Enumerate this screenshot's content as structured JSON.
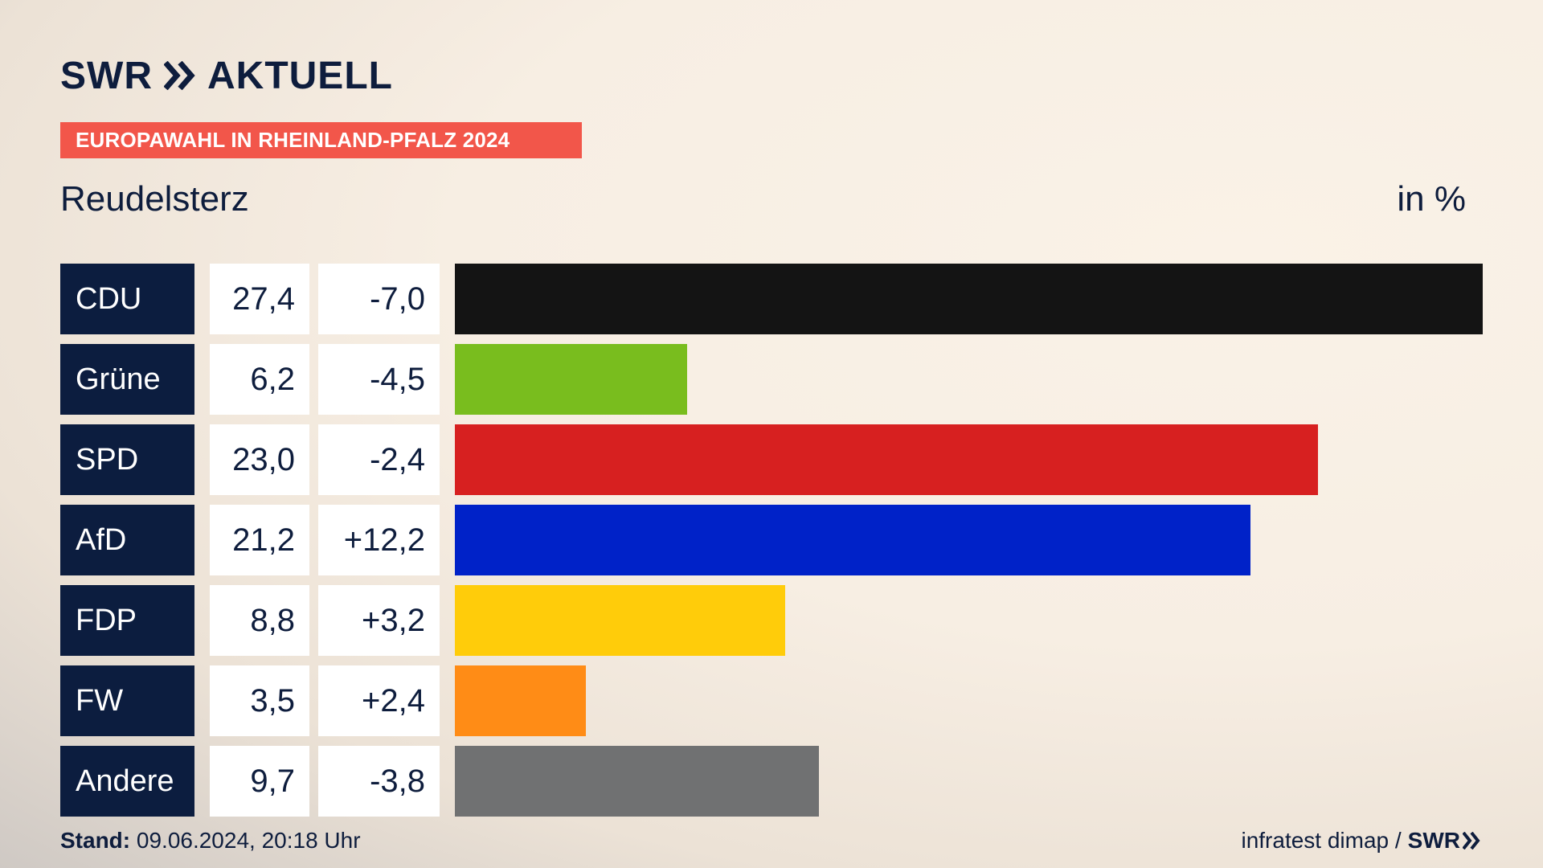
{
  "header": {
    "brand": "SWR",
    "product": "AKTUELL",
    "banner": "EUROPAWAHL IN RHEINLAND-PFALZ 2024",
    "place": "Reudelsterz",
    "unit": "in %"
  },
  "colors": {
    "navy": "#0c1d3f",
    "banner": "#f2564a"
  },
  "chart_data": {
    "type": "bar",
    "orientation": "horizontal",
    "title": "Reudelsterz",
    "unit": "in %",
    "categories": [
      "CDU",
      "Grüne",
      "SPD",
      "AfD",
      "FDP",
      "FW",
      "Andere"
    ],
    "values": [
      27.4,
      6.2,
      23.0,
      21.2,
      8.8,
      3.5,
      9.7
    ],
    "value_labels": [
      "27,4",
      "6,2",
      "23,0",
      "21,2",
      "8,8",
      "3,5",
      "9,7"
    ],
    "diff_labels": [
      "-7,0",
      "-4,5",
      "-2,4",
      "+12,2",
      "+3,2",
      "+2,4",
      "-3,8"
    ],
    "diffs": [
      -7.0,
      -4.5,
      -2.4,
      12.2,
      3.2,
      2.4,
      -3.8
    ],
    "colors": [
      "#141414",
      "#79bd1e",
      "#d72020",
      "#0022c8",
      "#ffcc0a",
      "#ff8c16",
      "#707172"
    ],
    "xlim": [
      0,
      27.4
    ]
  },
  "footer": {
    "stand_label": "Stand:",
    "stand_value": "09.06.2024, 20:18 Uhr",
    "source": "infratest dimap /",
    "source_brand": "SWR"
  }
}
